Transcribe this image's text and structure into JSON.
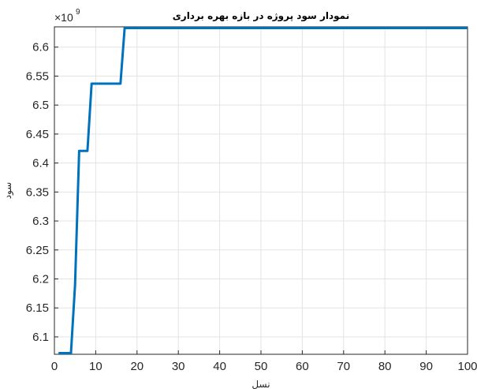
{
  "chart_data": {
    "type": "line",
    "title": "نمودار سود پروژه در بازه بهره برداری",
    "xlabel": "نسل",
    "ylabel": "سود",
    "exponent_label": "×10",
    "exponent_power": "9",
    "xlim": [
      0,
      100
    ],
    "ylim": [
      6.07,
      6.635
    ],
    "x_ticks": [
      0,
      10,
      20,
      30,
      40,
      50,
      60,
      70,
      80,
      90,
      100
    ],
    "x_tick_labels": [
      "0",
      "10",
      "20",
      "30",
      "40",
      "50",
      "60",
      "70",
      "80",
      "90",
      "100"
    ],
    "y_ticks": [
      6.1,
      6.15,
      6.2,
      6.25,
      6.3,
      6.35,
      6.4,
      6.45,
      6.5,
      6.55,
      6.6
    ],
    "y_tick_labels": [
      "6.1",
      "6.15",
      "6.2",
      "6.25",
      "6.3",
      "6.35",
      "6.4",
      "6.45",
      "6.5",
      "6.55",
      "6.6"
    ],
    "grid": true,
    "series": [
      {
        "color": "#0072BD",
        "x": [
          1,
          2,
          3,
          4,
          5,
          6,
          7,
          8,
          9,
          10,
          11,
          12,
          13,
          14,
          15,
          16,
          17,
          18,
          100
        ],
        "y": [
          6.072,
          6.072,
          6.072,
          6.072,
          6.19,
          6.421,
          6.421,
          6.421,
          6.537,
          6.537,
          6.537,
          6.537,
          6.537,
          6.537,
          6.537,
          6.537,
          6.633,
          6.633,
          6.633
        ]
      }
    ]
  }
}
